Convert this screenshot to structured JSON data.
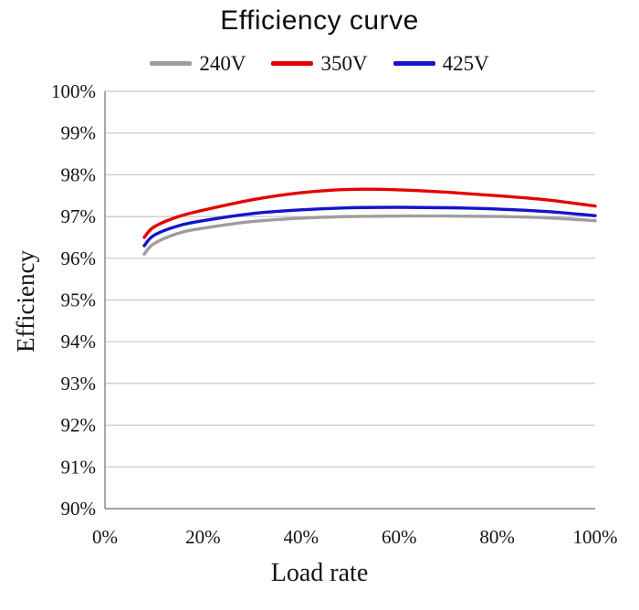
{
  "chart_data": {
    "type": "line",
    "title": "Efficiency curve",
    "xlabel": "Load rate",
    "ylabel": "Efficiency",
    "xlim": [
      0,
      100
    ],
    "ylim": [
      90,
      100
    ],
    "xticks": [
      0,
      20,
      40,
      60,
      80,
      100
    ],
    "xtick_labels": [
      "0%",
      "20%",
      "40%",
      "60%",
      "80%",
      "100%"
    ],
    "ytick_labels": [
      "90%",
      "91%",
      "92%",
      "93%",
      "94%",
      "95%",
      "96%",
      "97%",
      "98%",
      "99%",
      "100%"
    ],
    "grid": "horizontal",
    "legend_position": "top",
    "background": "#ffffff",
    "grid_color": "#c6c6c6",
    "axis_color": "#9a9a9a",
    "x": [
      8,
      10,
      15,
      20,
      30,
      40,
      50,
      60,
      70,
      80,
      90,
      100
    ],
    "series": [
      {
        "name": "240V",
        "color": "#9e9e9e",
        "values": [
          96.1,
          96.35,
          96.6,
          96.72,
          96.88,
          96.96,
          97.0,
          97.01,
          97.01,
          97.0,
          96.97,
          96.9
        ]
      },
      {
        "name": "350V",
        "color": "#e60000",
        "values": [
          96.5,
          96.75,
          97.0,
          97.15,
          97.4,
          97.57,
          97.65,
          97.64,
          97.58,
          97.5,
          97.4,
          97.25
        ]
      },
      {
        "name": "425V",
        "color": "#1414cc",
        "values": [
          96.3,
          96.55,
          96.78,
          96.9,
          97.07,
          97.16,
          97.21,
          97.22,
          97.21,
          97.18,
          97.12,
          97.02
        ]
      }
    ]
  }
}
